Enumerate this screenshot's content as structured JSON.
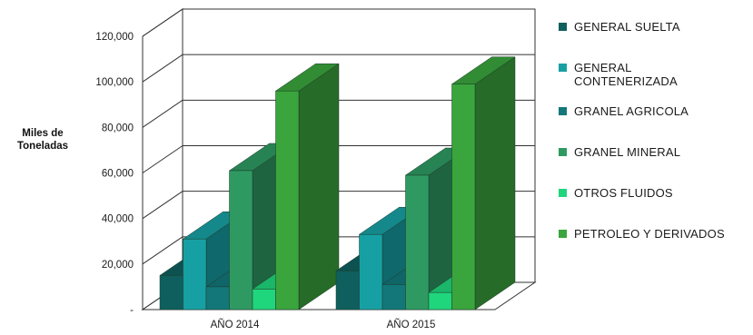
{
  "chart_data": {
    "type": "bar",
    "ylabel": [
      "Miles de",
      "Toneladas"
    ],
    "categories": [
      "AÑO 2014",
      "AÑO 2015"
    ],
    "ylim": [
      0,
      120000
    ],
    "yticks": [
      "-",
      "20,000",
      "40,000",
      "60,000",
      "80,000",
      "100,000",
      "120,000"
    ],
    "legend_position": "right",
    "series": [
      {
        "name": "GENERAL SUELTA",
        "values": [
          15000,
          17000
        ],
        "color": "#0f5f5e"
      },
      {
        "name": "GENERAL CONTENERIZADA",
        "values": [
          31000,
          33000
        ],
        "color": "#17a0a4"
      },
      {
        "name": "GRANEL AGRICOLA",
        "values": [
          10000,
          11000
        ],
        "color": "#13777a"
      },
      {
        "name": "GRANEL MINERAL",
        "values": [
          61000,
          59000
        ],
        "color": "#2e9a62"
      },
      {
        "name": "OTROS FLUIDOS",
        "values": [
          9000,
          7500
        ],
        "color": "#1fd67c"
      },
      {
        "name": "PETROLEO Y DERIVADOS",
        "values": [
          96000,
          99000
        ],
        "color": "#3aa53c"
      }
    ]
  }
}
